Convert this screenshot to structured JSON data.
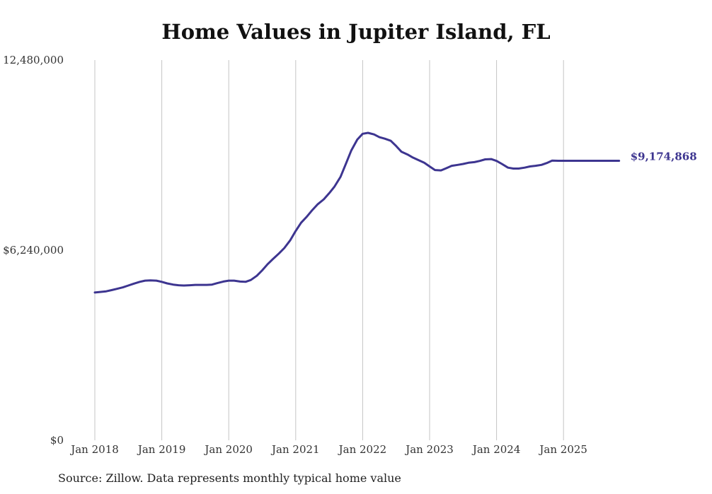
{
  "chart_data": {
    "type": "line",
    "title": "Home Values in Jupiter Island, FL",
    "xlabel": "",
    "ylabel": "",
    "x_tick_labels": [
      "Jan 2018",
      "Jan 2019",
      "Jan 2020",
      "Jan 2021",
      "Jan 2022",
      "Jan 2023",
      "Jan 2024",
      "Jan 2025"
    ],
    "x_tick_years": [
      2018,
      2019,
      2020,
      2021,
      2022,
      2023,
      2024,
      2025
    ],
    "y_tick_labels": [
      "$0",
      "$6,240,000",
      "12,480,000"
    ],
    "y_tick_values": [
      0,
      6240000,
      12480000
    ],
    "ylim": [
      0,
      12480000
    ],
    "xlim": [
      2018,
      2026
    ],
    "grid": "vertical",
    "series": [
      {
        "name": "Typical home value",
        "color": "#3d3590",
        "x": [
          2018.0,
          2018.08,
          2018.17,
          2018.25,
          2018.33,
          2018.42,
          2018.5,
          2018.58,
          2018.67,
          2018.75,
          2018.83,
          2018.92,
          2019.0,
          2019.08,
          2019.17,
          2019.25,
          2019.33,
          2019.42,
          2019.5,
          2019.58,
          2019.67,
          2019.75,
          2019.83,
          2019.92,
          2020.0,
          2020.08,
          2020.17,
          2020.25,
          2020.33,
          2020.42,
          2020.5,
          2020.58,
          2020.67,
          2020.75,
          2020.83,
          2020.92,
          2021.0,
          2021.08,
          2021.17,
          2021.25,
          2021.33,
          2021.42,
          2021.5,
          2021.58,
          2021.67,
          2021.75,
          2021.83,
          2021.92,
          2022.0,
          2022.08,
          2022.17,
          2022.25,
          2022.33,
          2022.42,
          2022.5,
          2022.58,
          2022.67,
          2022.75,
          2022.83,
          2022.92,
          2023.0,
          2023.08,
          2023.17,
          2023.25,
          2023.33,
          2023.42,
          2023.5,
          2023.58,
          2023.67,
          2023.75,
          2023.83,
          2023.92,
          2024.0,
          2024.08,
          2024.17,
          2024.25,
          2024.33,
          2024.42,
          2024.5,
          2024.58,
          2024.67,
          2024.75,
          2024.83,
          2024.92,
          2025.0,
          2025.08,
          2025.17,
          2025.25,
          2025.33,
          2025.42,
          2025.5,
          2025.58,
          2025.67,
          2025.75,
          2025.83
        ],
        "values": [
          4850000,
          4870000,
          4890000,
          4930000,
          4970000,
          5020000,
          5080000,
          5140000,
          5200000,
          5240000,
          5250000,
          5240000,
          5200000,
          5150000,
          5110000,
          5090000,
          5080000,
          5090000,
          5100000,
          5100000,
          5100000,
          5110000,
          5160000,
          5210000,
          5240000,
          5240000,
          5210000,
          5200000,
          5260000,
          5400000,
          5580000,
          5780000,
          5970000,
          6130000,
          6310000,
          6570000,
          6870000,
          7140000,
          7350000,
          7560000,
          7750000,
          7910000,
          8110000,
          8330000,
          8650000,
          9080000,
          9510000,
          9870000,
          10060000,
          10090000,
          10040000,
          9950000,
          9900000,
          9830000,
          9660000,
          9470000,
          9380000,
          9280000,
          9200000,
          9110000,
          8990000,
          8870000,
          8860000,
          8930000,
          9010000,
          9040000,
          9070000,
          9110000,
          9130000,
          9170000,
          9220000,
          9230000,
          9170000,
          9070000,
          8950000,
          8920000,
          8920000,
          8950000,
          8990000,
          9010000,
          9040000,
          9100000,
          9180000,
          9174868,
          9174868,
          9174868,
          9174868,
          9174868,
          9174868,
          9174868,
          9174868,
          9174868,
          9174868,
          9174868,
          9174868
        ],
        "end_label": "$9,174,868"
      }
    ]
  },
  "footer": {
    "source": "Source: Zillow. Data represents monthly typical home value"
  }
}
